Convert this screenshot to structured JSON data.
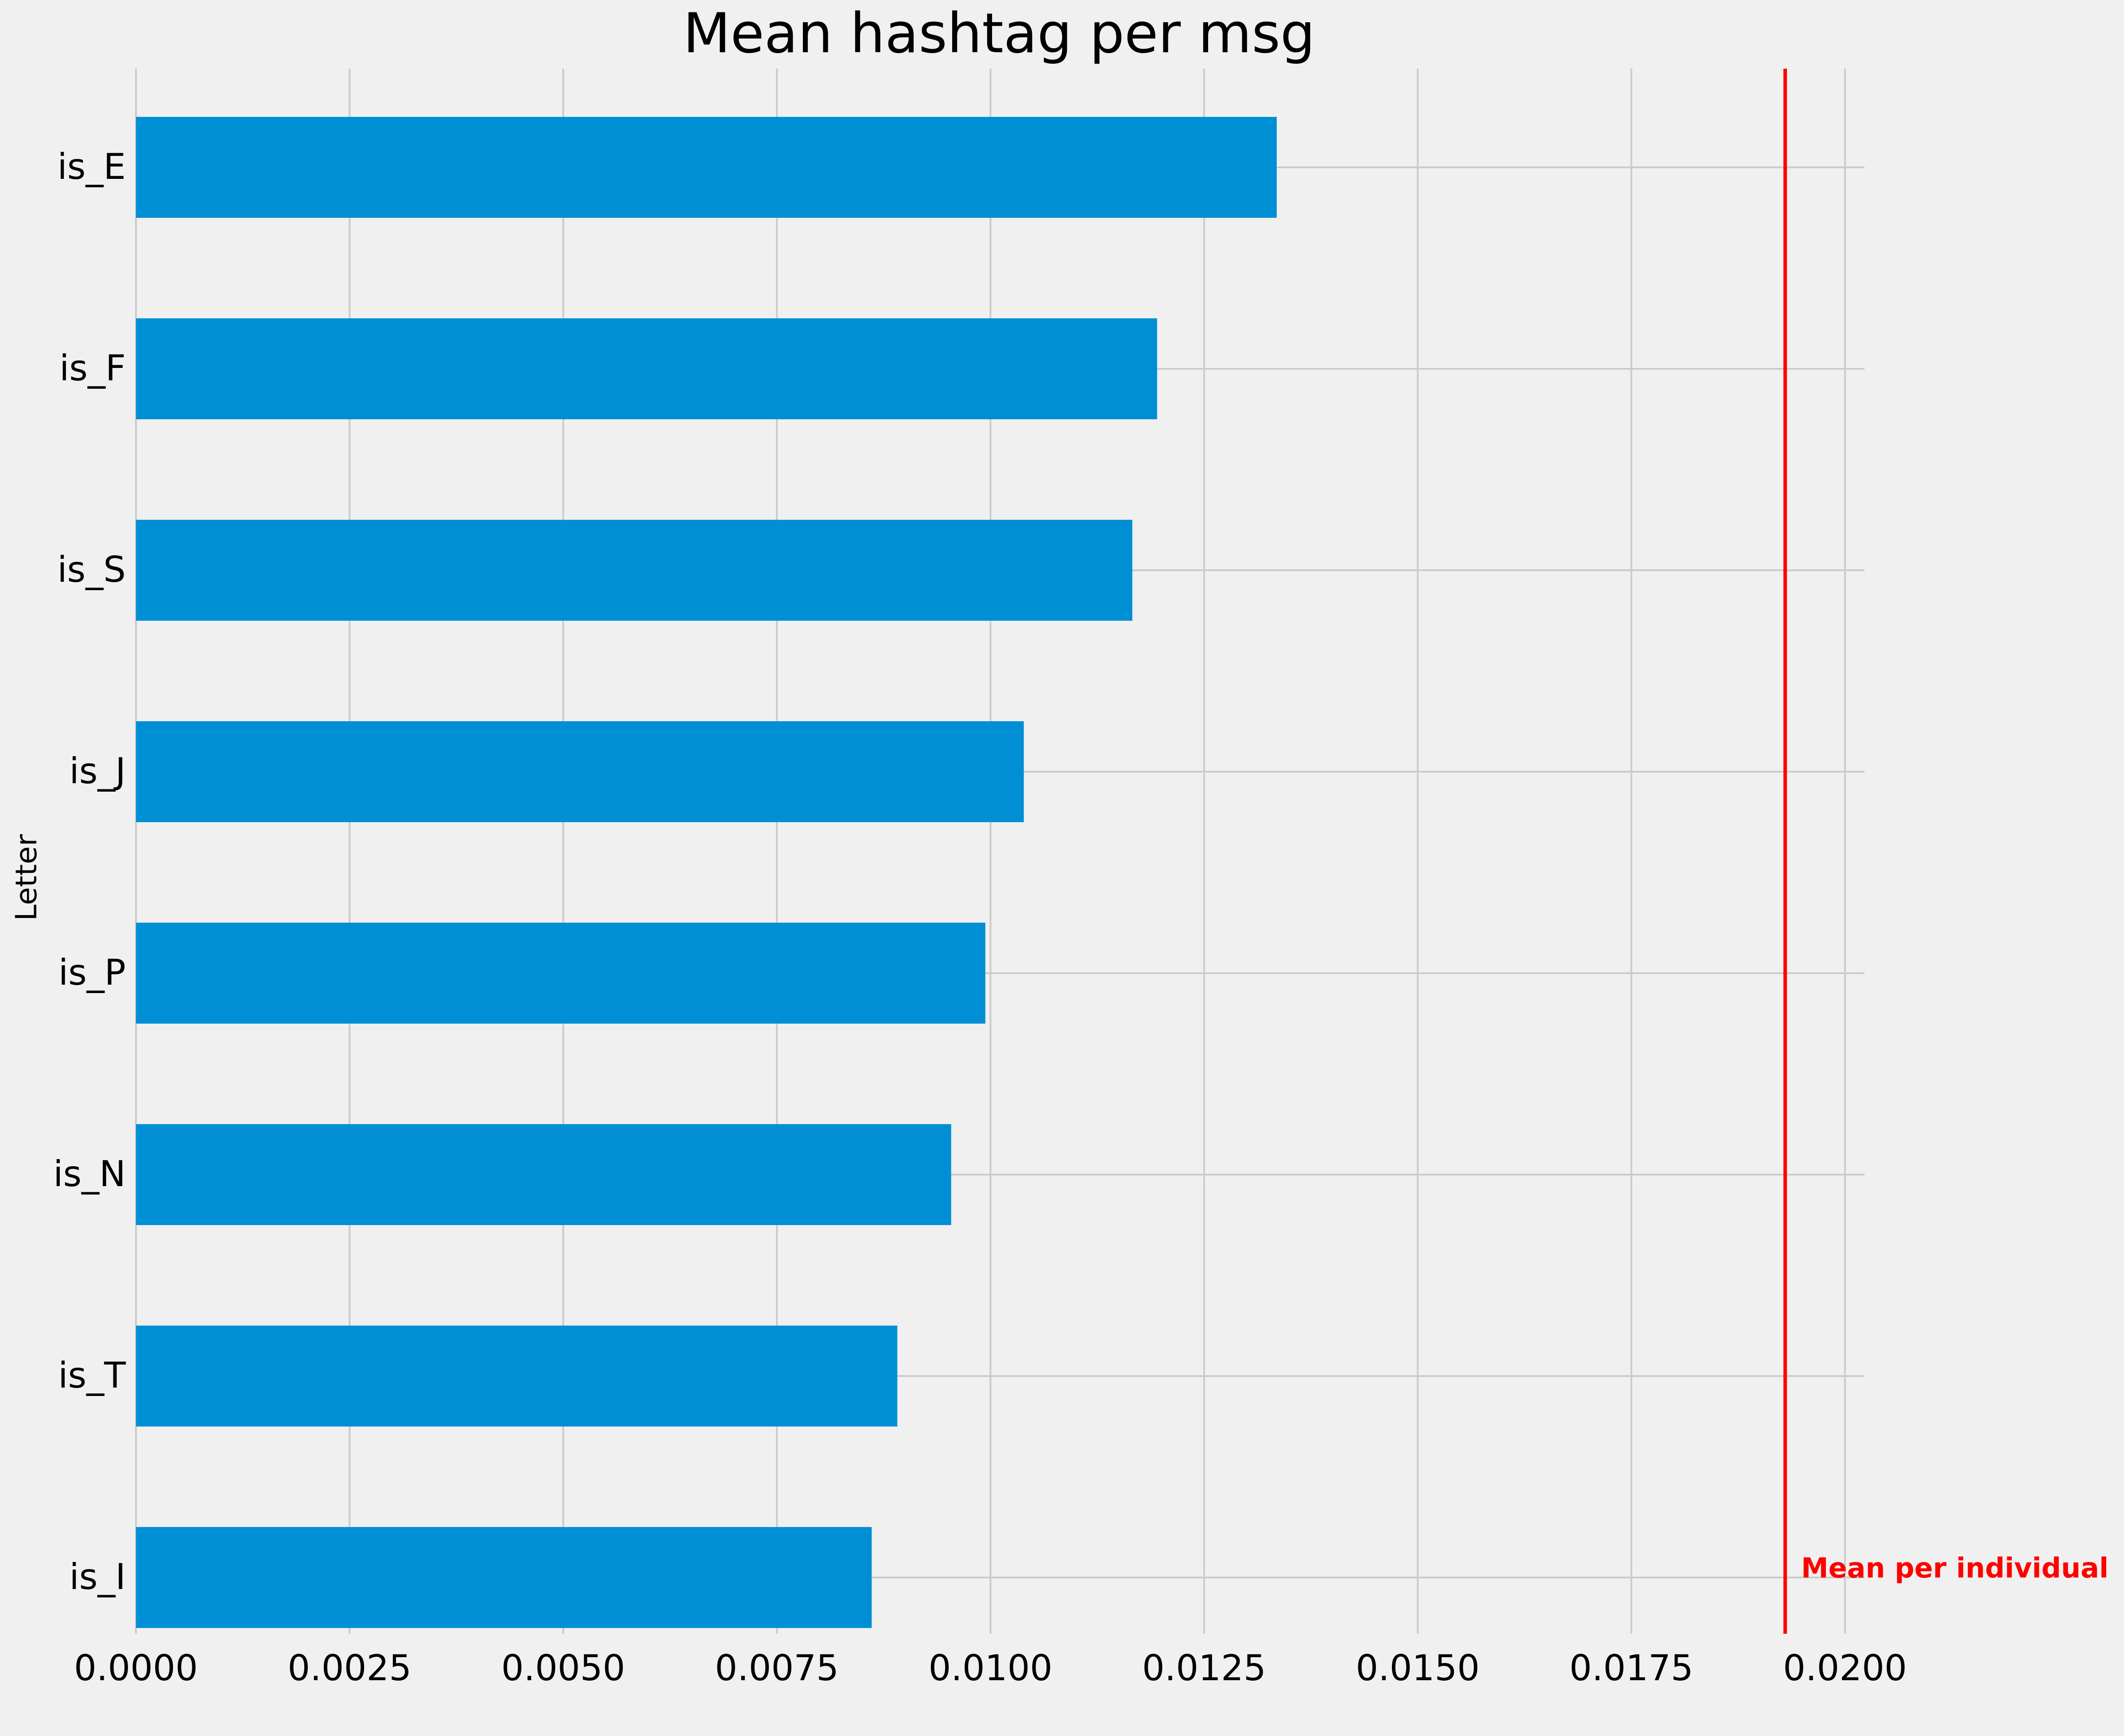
{
  "chart_data": {
    "type": "bar",
    "orientation": "horizontal",
    "title": "Mean hashtag per msg",
    "xlabel": "",
    "ylabel": "Letter",
    "categories": [
      "is_E",
      "is_F",
      "is_S",
      "is_J",
      "is_P",
      "is_N",
      "is_T",
      "is_I"
    ],
    "values": [
      0.01335,
      0.01195,
      0.01166,
      0.01039,
      0.00994,
      0.00954,
      0.00891,
      0.00861
    ],
    "xlim": [
      0,
      0.02
    ],
    "xticks": [
      "0.0000",
      "0.0025",
      "0.0050",
      "0.0075",
      "0.0100",
      "0.0125",
      "0.0150",
      "0.0175",
      "0.0200"
    ],
    "grid": true,
    "bar_color": "#008fd5",
    "reference_line": {
      "value": 0.0193,
      "label": "Mean per individual",
      "color": "#ff0000"
    }
  }
}
